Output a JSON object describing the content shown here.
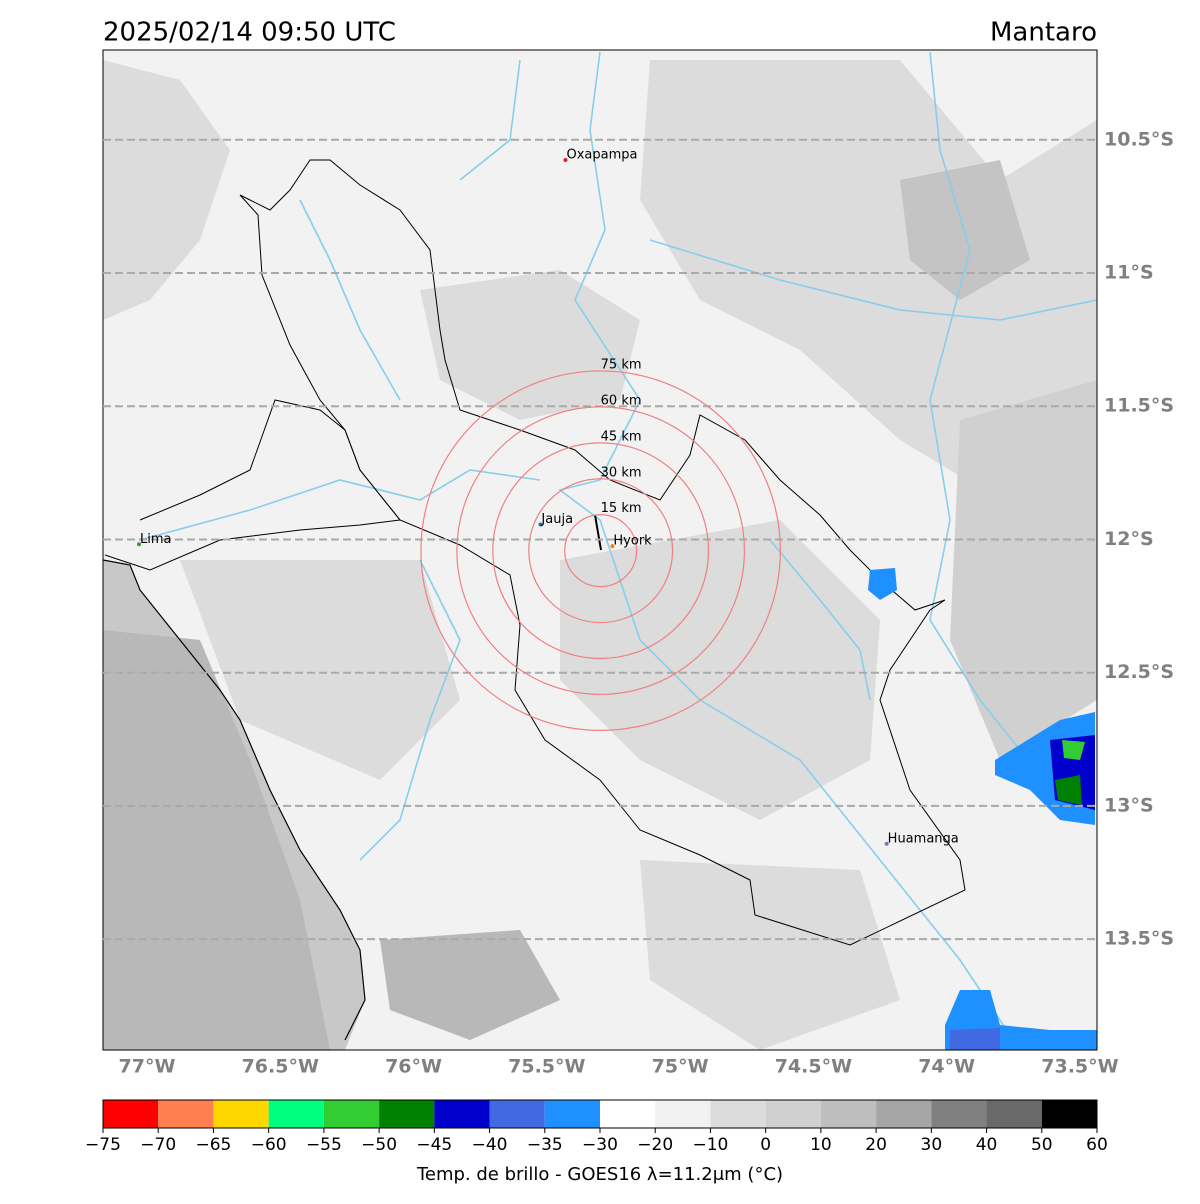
{
  "map": {
    "title": "2025/02/14 09:50 UTC",
    "region": "Mantaro",
    "xlim": [
      -77.165,
      -73.436
    ],
    "ylim": [
      -13.916,
      -10.163
    ],
    "xticks": [
      {
        "value": -77,
        "label": "77°W"
      },
      {
        "value": -76.5,
        "label": "76.5°W"
      },
      {
        "value": -76,
        "label": "76°W"
      },
      {
        "value": -75.5,
        "label": "75.5°W"
      },
      {
        "value": -75,
        "label": "75°W"
      },
      {
        "value": -74.5,
        "label": "74.5°W"
      },
      {
        "value": -74,
        "label": "74°W"
      },
      {
        "value": -73.5,
        "label": "73.5°W"
      }
    ],
    "yticks": [
      {
        "value": -10.5,
        "label": "10.5°S"
      },
      {
        "value": -11,
        "label": "11°S"
      },
      {
        "value": -11.5,
        "label": "11.5°S"
      },
      {
        "value": -12,
        "label": "12°S"
      },
      {
        "value": -12.5,
        "label": "12.5°S"
      },
      {
        "value": -13,
        "label": "13°S"
      },
      {
        "value": -13.5,
        "label": "13.5°S"
      }
    ],
    "grid": true,
    "places": [
      {
        "name": "Oxapampa",
        "lon": -75.43,
        "lat": -10.576,
        "color": "#d62728"
      },
      {
        "name": "Jauja",
        "lon": -75.524,
        "lat": -11.944,
        "color": "#1f77b4"
      },
      {
        "name": "Hyork",
        "lon": -75.254,
        "lat": -12.025,
        "color": "#ff7f0e"
      },
      {
        "name": "Lima",
        "lon": -77.03,
        "lat": -12.018,
        "color": "#2ca02c"
      },
      {
        "name": "Huamanga",
        "lon": -74.225,
        "lat": -13.142,
        "color": "#9467bd"
      }
    ],
    "rings": {
      "lon": -75.298,
      "lat": -12.042,
      "color": "#f08080",
      "radii_km": [
        15,
        30,
        45,
        60,
        75
      ],
      "value_labels": [
        "15 km",
        "30 km",
        "45 km",
        "60 km",
        "75 km"
      ]
    },
    "colorbar": {
      "label": "Temp. de brillo - GOES16 λ=11.2μm (°C)",
      "bounds": [
        {
          "value": -75,
          "label": "−75"
        },
        {
          "value": -70,
          "label": "−70"
        },
        {
          "value": -65,
          "label": "−65"
        },
        {
          "value": -60,
          "label": "−60"
        },
        {
          "value": -55,
          "label": "−55"
        },
        {
          "value": -50,
          "label": "−50"
        },
        {
          "value": -45,
          "label": "−45"
        },
        {
          "value": -40,
          "label": "−40"
        },
        {
          "value": -35,
          "label": "−35"
        },
        {
          "value": -30,
          "label": "−30"
        },
        {
          "value": -20,
          "label": "−20"
        },
        {
          "value": -10,
          "label": "−10"
        },
        0,
        10,
        20,
        30,
        40,
        50,
        60
      ],
      "colors": [
        "#ff0000",
        "#ff7f50",
        "#ffd700",
        "#00ff7f",
        "#32cd32",
        "#008000",
        "#0000cd",
        "#4169e1",
        "#1e90ff",
        "#ffffff",
        "#f2f2f2",
        "#dcdcdc",
        "#d0d0d0",
        "#bebebe",
        "#a6a6a6",
        "#808080",
        "#696969",
        "#000000"
      ]
    }
  }
}
